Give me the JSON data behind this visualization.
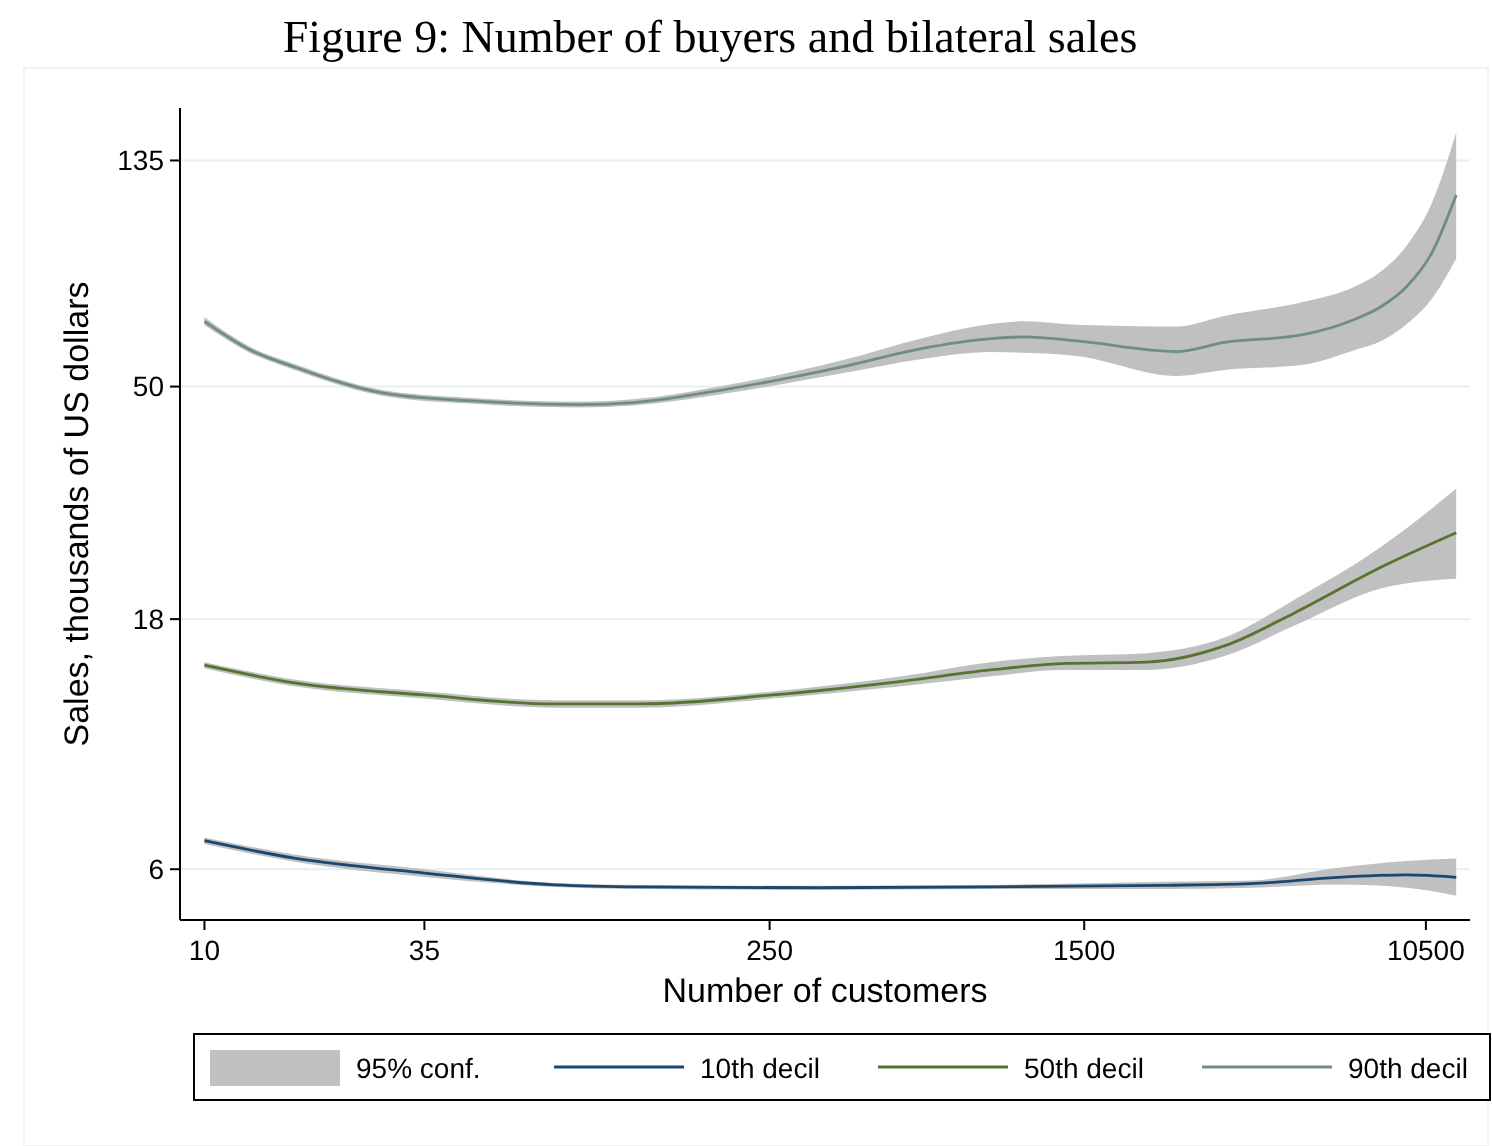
{
  "chart_data": {
    "type": "line",
    "title": "Figure 9: Number of buyers and bilateral sales",
    "xlabel": "Number of customers",
    "ylabel": "Sales, thousands of US dollars",
    "log": "xy",
    "grid": "y",
    "legend": "bottom",
    "marker": "none",
    "line_style": "solid",
    "xlim": [
      8.7,
      13500
    ],
    "xticks": [
      10,
      35,
      250,
      1500,
      10500
    ],
    "ylim": [
      4.8,
      170
    ],
    "yticks": [
      6,
      18,
      50,
      135
    ],
    "annotations": [
      "95% conf."
    ],
    "series": [
      {
        "name": "10th decil",
        "color": "#1a476f",
        "x": [
          10,
          16.7,
          35,
          73.5,
          121,
          326,
          881,
          2357,
          3863,
          6368,
          9418,
          12480
        ],
        "values": [
          6.8,
          6.3,
          5.9,
          5.6,
          5.55,
          5.53,
          5.55,
          5.59,
          5.63,
          5.79,
          5.85,
          5.79
        ],
        "lower": [
          6.7,
          6.2,
          5.8,
          5.55,
          5.5,
          5.48,
          5.5,
          5.5,
          5.53,
          5.61,
          5.53,
          5.34
        ],
        "upper": [
          6.9,
          6.4,
          6.0,
          5.65,
          5.6,
          5.58,
          5.6,
          5.68,
          5.71,
          6.04,
          6.22,
          6.29
        ]
      },
      {
        "name": "50th decil",
        "color": "#55752f",
        "x": [
          10,
          16.7,
          35,
          73.5,
          121,
          254,
          530,
          881,
          1313,
          2141,
          3334,
          4967,
          8126,
          12480
        ],
        "values": [
          14.7,
          13.6,
          12.9,
          12.4,
          12.4,
          12.9,
          13.7,
          14.4,
          14.8,
          14.9,
          16.0,
          18.5,
          22.6,
          26.3
        ],
        "lower": [
          14.5,
          13.4,
          12.7,
          12.2,
          12.2,
          12.7,
          13.4,
          14.0,
          14.4,
          14.4,
          15.3,
          17.5,
          20.6,
          21.5
        ],
        "upper": [
          14.9,
          13.8,
          13.1,
          12.6,
          12.6,
          13.1,
          14.0,
          14.9,
          15.3,
          15.5,
          16.6,
          19.6,
          24.7,
          31.9
        ]
      },
      {
        "name": "90th decil",
        "color": "#6e8e84",
        "x": [
          10,
          13,
          16.7,
          27.3,
          45,
          85,
          115,
          198,
          378,
          590,
          881,
          1069,
          1437,
          2533,
          3334,
          5216,
          7011,
          8126,
          9418,
          10900,
          12480
        ],
        "values": [
          66.6,
          58.7,
          54.5,
          48.7,
          47.0,
          46.2,
          46.6,
          49.5,
          54.5,
          59.0,
          61.7,
          62.2,
          61.1,
          58.3,
          60.7,
          62.8,
          67.2,
          71.0,
          77.6,
          90.4,
          116
        ],
        "lower": [
          65.5,
          57.9,
          53.8,
          48.1,
          46.4,
          45.6,
          46.0,
          48.6,
          53.0,
          56.4,
          58.2,
          58.0,
          57.2,
          52.4,
          53.8,
          55.0,
          58.7,
          61.0,
          65.8,
          73.8,
          87.7
        ],
        "upper": [
          67.8,
          59.5,
          55.2,
          49.3,
          47.6,
          46.8,
          47.3,
          50.4,
          56.1,
          61.7,
          65.8,
          66.6,
          65.6,
          65.1,
          68.2,
          72.5,
          77.6,
          82.9,
          92.9,
          112.6,
          152.7
        ]
      }
    ]
  }
}
